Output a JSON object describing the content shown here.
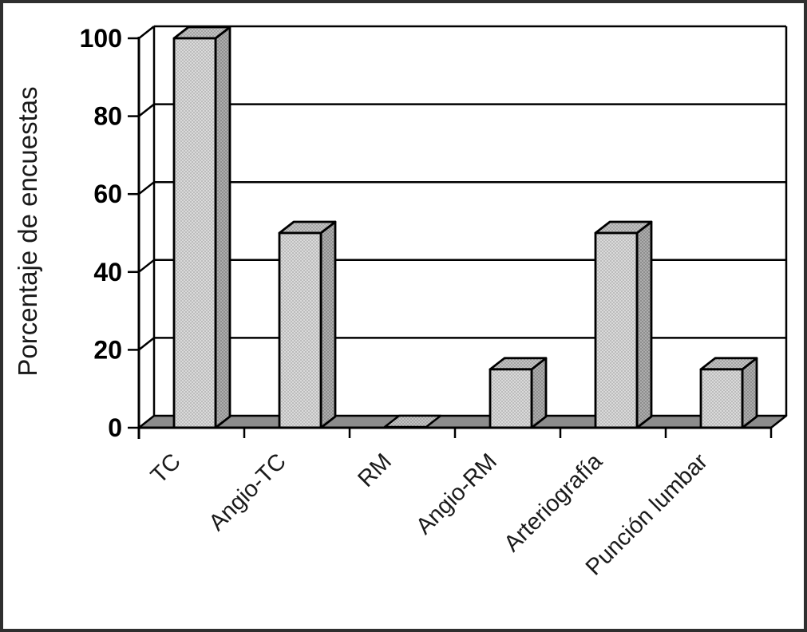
{
  "chart_data": {
    "type": "bar",
    "effect": "3d",
    "title": "",
    "ylabel": "Porcentaje de encuestas",
    "xlabel": "",
    "categories": [
      "TC",
      "Angio-TC",
      "RM",
      "Angio-RM",
      "Arteriografía",
      "Punción lumbar"
    ],
    "values": [
      100,
      50,
      0,
      15,
      50,
      15
    ],
    "ylim": [
      0,
      100
    ],
    "ytick_step": 20,
    "yticks": [
      0,
      20,
      40,
      60,
      80,
      100
    ],
    "grid": true,
    "legend_position": "none",
    "colors": {
      "bar_front": "#bcbcbc",
      "bar_front_dot": "#f0f0f0",
      "bar_top": "#a4a4a4",
      "bar_top_dot": "#dcdcdc",
      "bar_side": "#8e8e8e",
      "bar_side_dot": "#c6c6c6",
      "floor": "#8c8c8c",
      "line": "#000000",
      "background": "#ffffff",
      "frame_border": "#2f2f2f"
    }
  }
}
